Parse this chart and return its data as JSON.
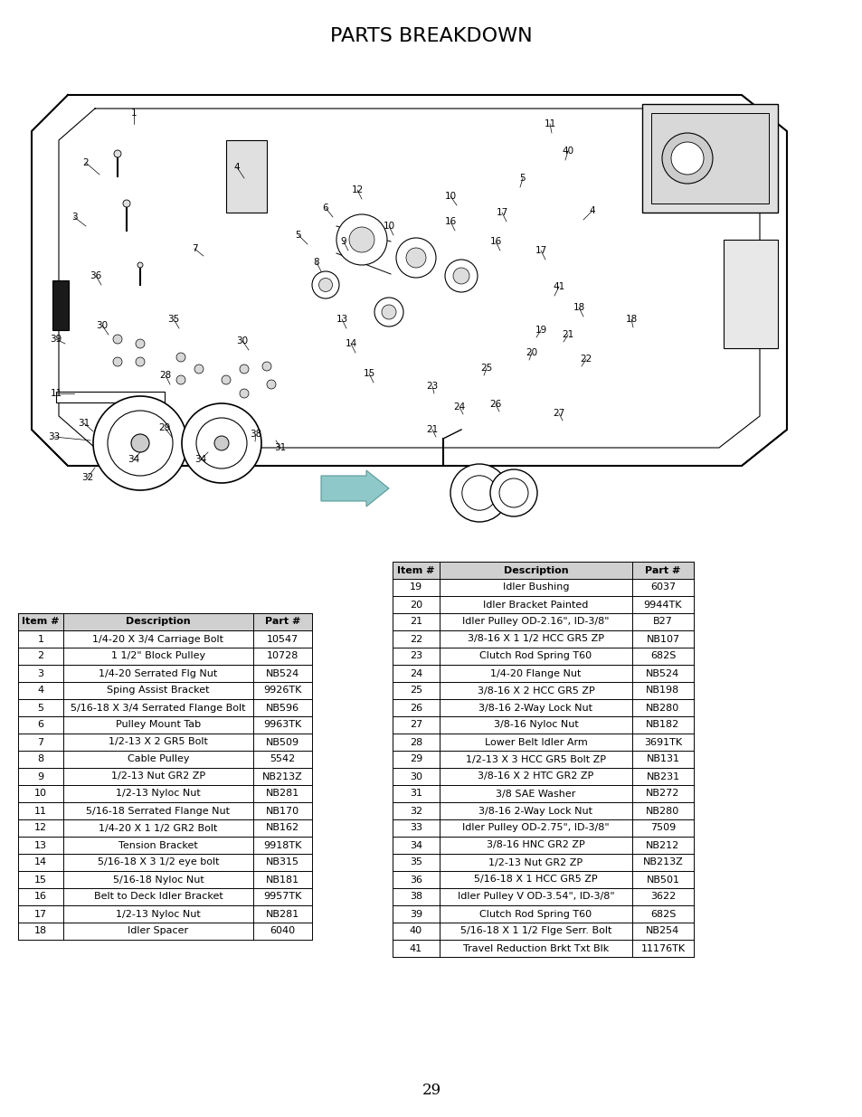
{
  "title": "PARTS BREAKDOWN",
  "page_number": "29",
  "background_color": "#ffffff",
  "table1_headers": [
    "Item #",
    "Description",
    "Part #"
  ],
  "table1_rows": [
    [
      "1",
      "1/4-20 X 3/4 Carriage Bolt",
      "10547"
    ],
    [
      "2",
      "1 1/2\" Block Pulley",
      "10728"
    ],
    [
      "3",
      "1/4-20 Serrated Flg Nut",
      "NB524"
    ],
    [
      "4",
      "Sping Assist Bracket",
      "9926TK"
    ],
    [
      "5",
      "5/16-18 X 3/4 Serrated Flange Bolt",
      "NB596"
    ],
    [
      "6",
      "Pulley Mount Tab",
      "9963TK"
    ],
    [
      "7",
      "1/2-13 X 2 GR5 Bolt",
      "NB509"
    ],
    [
      "8",
      "Cable Pulley",
      "5542"
    ],
    [
      "9",
      "1/2-13 Nut GR2 ZP",
      "NB213Z"
    ],
    [
      "10",
      "1/2-13 Nyloc Nut",
      "NB281"
    ],
    [
      "11",
      "5/16-18 Serrated Flange Nut",
      "NB170"
    ],
    [
      "12",
      "1/4-20 X 1 1/2 GR2 Bolt",
      "NB162"
    ],
    [
      "13",
      "Tension Bracket",
      "9918TK"
    ],
    [
      "14",
      "5/16-18 X 3 1/2 eye bolt",
      "NB315"
    ],
    [
      "15",
      "5/16-18 Nyloc Nut",
      "NB181"
    ],
    [
      "16",
      "Belt to Deck Idler Bracket",
      "9957TK"
    ],
    [
      "17",
      "1/2-13 Nyloc Nut",
      "NB281"
    ],
    [
      "18",
      "Idler Spacer",
      "6040"
    ]
  ],
  "table2_top_rows": [
    [
      "19",
      "Idler Bushing",
      "6037"
    ],
    [
      "20",
      "Idler Bracket Painted",
      "9944TK"
    ],
    [
      "21",
      "Idler Pulley OD-2.16\", ID-3/8\"",
      "B27"
    ]
  ],
  "table2_headers": [
    "Item #",
    "Description",
    "Part #"
  ],
  "table2_rows": [
    [
      "22",
      "3/8-16 X 1 1/2 HCC GR5 ZP",
      "NB107"
    ],
    [
      "23",
      "Clutch Rod Spring T60",
      "682S"
    ],
    [
      "24",
      "1/4-20 Flange Nut",
      "NB524"
    ],
    [
      "25",
      "3/8-16 X 2 HCC GR5 ZP",
      "NB198"
    ],
    [
      "26",
      "3/8-16 2-Way Lock Nut",
      "NB280"
    ],
    [
      "27",
      "3/8-16 Nyloc Nut",
      "NB182"
    ],
    [
      "28",
      "Lower Belt Idler Arm",
      "3691TK"
    ],
    [
      "29",
      "1/2-13 X 3 HCC GR5 Bolt ZP",
      "NB131"
    ],
    [
      "30",
      "3/8-16 X 2 HTC GR2 ZP",
      "NB231"
    ],
    [
      "31",
      "3/8 SAE Washer",
      "NB272"
    ],
    [
      "32",
      "3/8-16 2-Way Lock Nut",
      "NB280"
    ],
    [
      "33",
      "Idler Pulley OD-2.75\", ID-3/8\"",
      "7509"
    ],
    [
      "34",
      "3/8-16 HNC GR2 ZP",
      "NB212"
    ],
    [
      "35",
      "1/2-13 Nut GR2 ZP",
      "NB213Z"
    ],
    [
      "36",
      "5/16-18 X 1 HCC GR5 ZP",
      "NB501"
    ],
    [
      "38",
      "Idler Pulley V OD-3.54\", ID-3/8\"",
      "3622"
    ],
    [
      "39",
      "Clutch Rod Spring T60",
      "682S"
    ],
    [
      "40",
      "5/16-18 X 1 1/2 Flge Serr. Bolt",
      "NB254"
    ],
    [
      "41",
      "Travel Reduction Brkt Txt Blk",
      "11176TK"
    ]
  ],
  "font_size_title": 16,
  "font_size_table": 8.0
}
